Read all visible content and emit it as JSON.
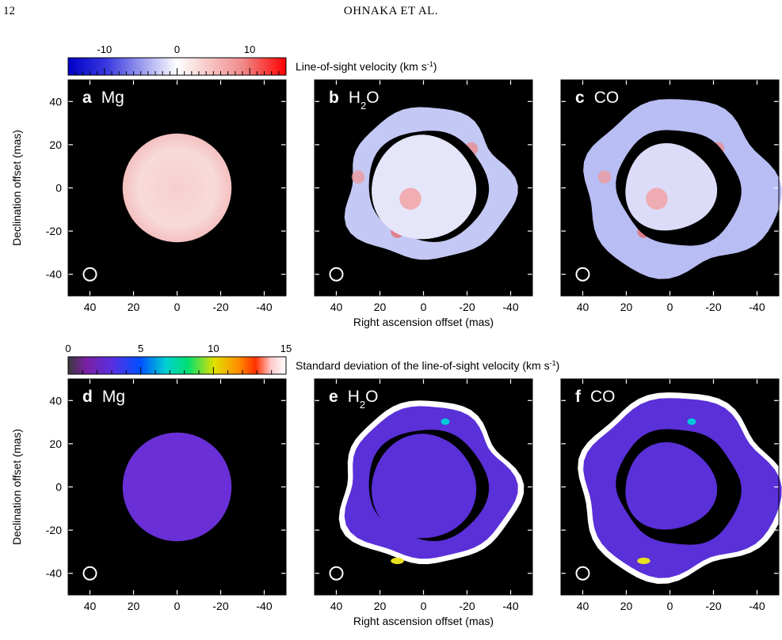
{
  "header": {
    "page_number": "12",
    "running_head": "OHNAKA ET AL."
  },
  "figure": {
    "colorbar_top": {
      "label": "Line-of-sight velocity (km s",
      "label_sup": "-1",
      "label_close": ")",
      "ticks": [
        "-10",
        "0",
        "10"
      ],
      "tick_values": [
        -10,
        0,
        10
      ],
      "range": [
        -15,
        15
      ],
      "colormap": "blue-white-red"
    },
    "colorbar_bottom": {
      "label": "Standard deviation of the line-of-sight velocity (km s",
      "label_sup": "-1",
      "label_close": ")",
      "ticks": [
        "0",
        "5",
        "10",
        "15"
      ],
      "tick_values": [
        0,
        5,
        10,
        15
      ],
      "range": [
        0,
        15
      ],
      "colormap": "rainbow-to-white"
    },
    "axes": {
      "xlabel": "Right ascension offset (mas)",
      "ylabel": "Declination offset (mas)",
      "xticks": [
        "40",
        "20",
        "0",
        "-20",
        "-40"
      ],
      "yticks": [
        "40",
        "20",
        "0",
        "-20",
        "-40"
      ],
      "xlim": [
        50,
        -50
      ],
      "ylim": [
        -50,
        50
      ]
    },
    "panels": [
      {
        "letter": "a",
        "species": "Mg"
      },
      {
        "letter": "b",
        "species": "H",
        "sub": "2",
        "species_tail": "O"
      },
      {
        "letter": "c",
        "species": "CO"
      },
      {
        "letter": "d",
        "species": "Mg"
      },
      {
        "letter": "e",
        "species": "H",
        "sub": "2",
        "species_tail": "O"
      },
      {
        "letter": "f",
        "species": "CO"
      }
    ],
    "colors": {
      "background": "#000000",
      "mg_velocity": "#f8d8d8",
      "mg_sigma": "#6a2fd6",
      "h2o_outer_velocity": "#c4c8f4",
      "co_outer_velocity": "#b8bdf4",
      "sigma_disk": "#5a30d8",
      "sigma_edge": "#ffffff"
    }
  }
}
